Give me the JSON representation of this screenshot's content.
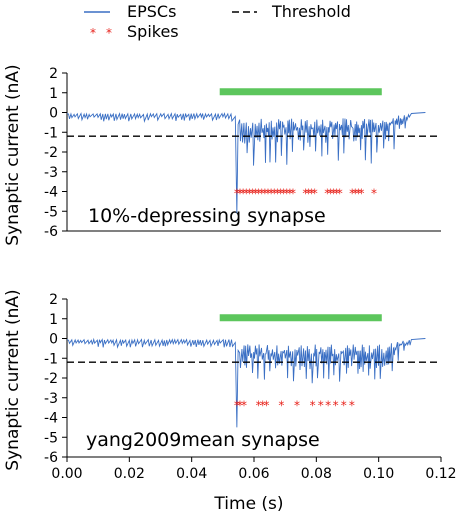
{
  "legend": {
    "epsc_label": "EPSCs",
    "spikes_label": "Spikes",
    "threshold_label": "Threshold"
  },
  "colors": {
    "epsc": "#3a6fc4",
    "spikes": "#e8231c",
    "stimulus": "#5cc65c",
    "threshold": "#000000"
  },
  "chart_data": [
    {
      "type": "line",
      "ylabel": "Synaptic current (nA)",
      "xlabel": "",
      "annotation": "10%-depressing synapse",
      "xlim": [
        0.0,
        0.12
      ],
      "ylim": [
        -6,
        2
      ],
      "yticks": [
        2,
        1,
        0,
        -1,
        -2,
        -3,
        -4,
        -5,
        -6
      ],
      "xticks": [],
      "threshold": -1.2,
      "stimulus": {
        "x_start": 0.049,
        "x_end": 0.101,
        "y": 1.05
      },
      "epsc_trace": {
        "x_range": [
          0.0,
          0.115
        ],
        "pre_stimulus_min": -0.45,
        "stim_onset": 0.054,
        "peak": {
          "x": 0.0545,
          "y": -5.1
        },
        "post_stim_min_range": [
          -2.8,
          -1.3
        ],
        "end_value": 0.0
      },
      "spikes": {
        "y": -4.0,
        "x": [
          0.0545,
          0.0555,
          0.0565,
          0.0575,
          0.0585,
          0.0595,
          0.0605,
          0.0615,
          0.0625,
          0.0635,
          0.0645,
          0.0655,
          0.0665,
          0.0675,
          0.0685,
          0.0695,
          0.0705,
          0.0715,
          0.0725,
          0.0765,
          0.0775,
          0.0785,
          0.0795,
          0.0835,
          0.0845,
          0.0855,
          0.0865,
          0.0875,
          0.0915,
          0.0925,
          0.0935,
          0.0945,
          0.0985
        ]
      }
    },
    {
      "type": "line",
      "ylabel": "Synaptic current (nA)",
      "xlabel": "Time (s)",
      "annotation": "yang2009mean synapse",
      "xlim": [
        0.0,
        0.12
      ],
      "ylim": [
        -6,
        2
      ],
      "yticks": [
        2,
        1,
        0,
        -1,
        -2,
        -3,
        -4,
        -5,
        -6
      ],
      "xticks": [
        0.0,
        0.02,
        0.04,
        0.06,
        0.08,
        0.1,
        0.12
      ],
      "xtick_labels": [
        "0.00",
        "0.02",
        "0.04",
        "0.06",
        "0.08",
        "0.10",
        "0.12"
      ],
      "threshold": -1.2,
      "stimulus": {
        "x_start": 0.049,
        "x_end": 0.101,
        "y": 1.05
      },
      "epsc_trace": {
        "x_range": [
          0.0,
          0.115
        ],
        "pre_stimulus_min": -0.45,
        "stim_onset": 0.054,
        "peak": {
          "x": 0.0545,
          "y": -4.5
        },
        "post_stim_min_range": [
          -2.3,
          -1.3
        ],
        "end_value": 0.0
      },
      "spikes": {
        "y": -3.3,
        "x": [
          0.0545,
          0.0555,
          0.0568,
          0.0615,
          0.0628,
          0.064,
          0.0688,
          0.0738,
          0.0788,
          0.0814,
          0.0838,
          0.0862,
          0.0888,
          0.0914
        ]
      }
    }
  ]
}
